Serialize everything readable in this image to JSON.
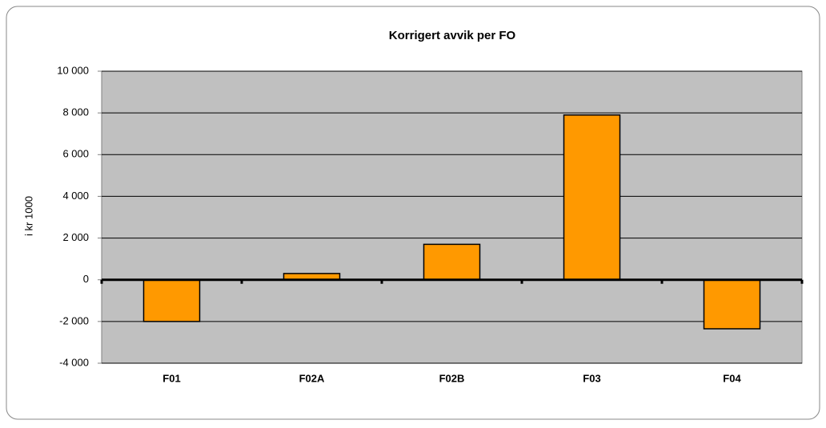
{
  "chart_data": {
    "type": "bar",
    "title": "Korrigert avvik per FO",
    "y_label": "i kr 1000",
    "categories": [
      "F01",
      "F02A",
      "F02B",
      "F03",
      "F04"
    ],
    "values": [
      -2000,
      300,
      1700,
      7900,
      -2350
    ],
    "color": "#ff9900",
    "ylim": [
      -4000,
      10000
    ],
    "yticks": [
      {
        "value": -4000,
        "label": "-4 000"
      },
      {
        "value": -2000,
        "label": "-2 000"
      },
      0,
      {
        "value": 2000,
        "label": "2 000"
      },
      {
        "value": 4000,
        "label": "4 000"
      },
      {
        "value": 6000,
        "label": "6 000"
      },
      {
        "value": 8000,
        "label": "8 000"
      },
      {
        "value": 10000,
        "label": "10 000"
      }
    ],
    "grid": true
  }
}
